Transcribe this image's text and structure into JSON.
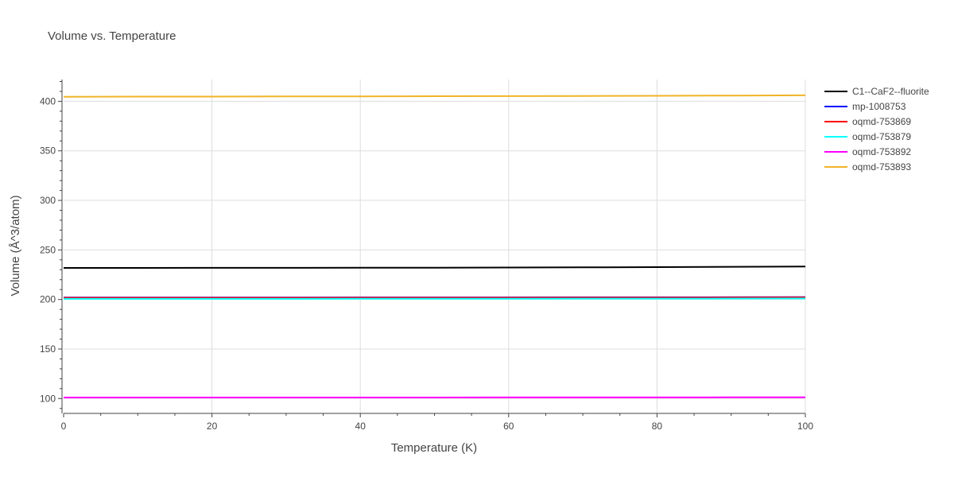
{
  "chart_data": {
    "type": "line",
    "title": "Volume vs. Temperature",
    "xlabel": "Temperature (K)",
    "ylabel": "Volume (Å^3/atom)",
    "xlim": [
      0,
      100
    ],
    "ylim": [
      85,
      422
    ],
    "x_ticks": [
      0,
      20,
      40,
      60,
      80,
      100
    ],
    "y_ticks": [
      100,
      150,
      200,
      250,
      300,
      350,
      400
    ],
    "grid": true,
    "legend_position": "right",
    "x": [
      0,
      10,
      20,
      30,
      40,
      50,
      60,
      70,
      80,
      90,
      100
    ],
    "series": [
      {
        "name": "C1--CaF2--fluorite",
        "color": "#000000",
        "values": [
          231.8,
          231.85,
          231.9,
          231.95,
          232.0,
          232.05,
          232.2,
          232.4,
          232.6,
          232.9,
          233.2
        ]
      },
      {
        "name": "mp-1008753",
        "color": "#0000ff",
        "values": [
          201.9,
          201.9,
          201.95,
          201.95,
          202.0,
          202.0,
          202.05,
          202.1,
          202.15,
          202.2,
          202.3
        ]
      },
      {
        "name": "oqmd-753869",
        "color": "#ff0000",
        "values": [
          201.6,
          201.6,
          201.65,
          201.65,
          201.7,
          201.7,
          201.75,
          201.8,
          201.85,
          201.9,
          202.0
        ]
      },
      {
        "name": "oqmd-753879",
        "color": "#00ffff",
        "values": [
          200.6,
          200.6,
          200.65,
          200.65,
          200.7,
          200.7,
          200.75,
          200.8,
          200.85,
          200.9,
          201.0
        ]
      },
      {
        "name": "oqmd-753892",
        "color": "#ff00ff",
        "values": [
          101.0,
          101.0,
          101.0,
          101.0,
          101.05,
          101.05,
          101.1,
          101.1,
          101.15,
          101.2,
          101.3
        ]
      },
      {
        "name": "oqmd-753893",
        "color": "#f0b428",
        "values": [
          404.6,
          404.7,
          404.8,
          404.9,
          405.0,
          405.1,
          405.25,
          405.4,
          405.6,
          405.8,
          406.1
        ]
      }
    ]
  }
}
